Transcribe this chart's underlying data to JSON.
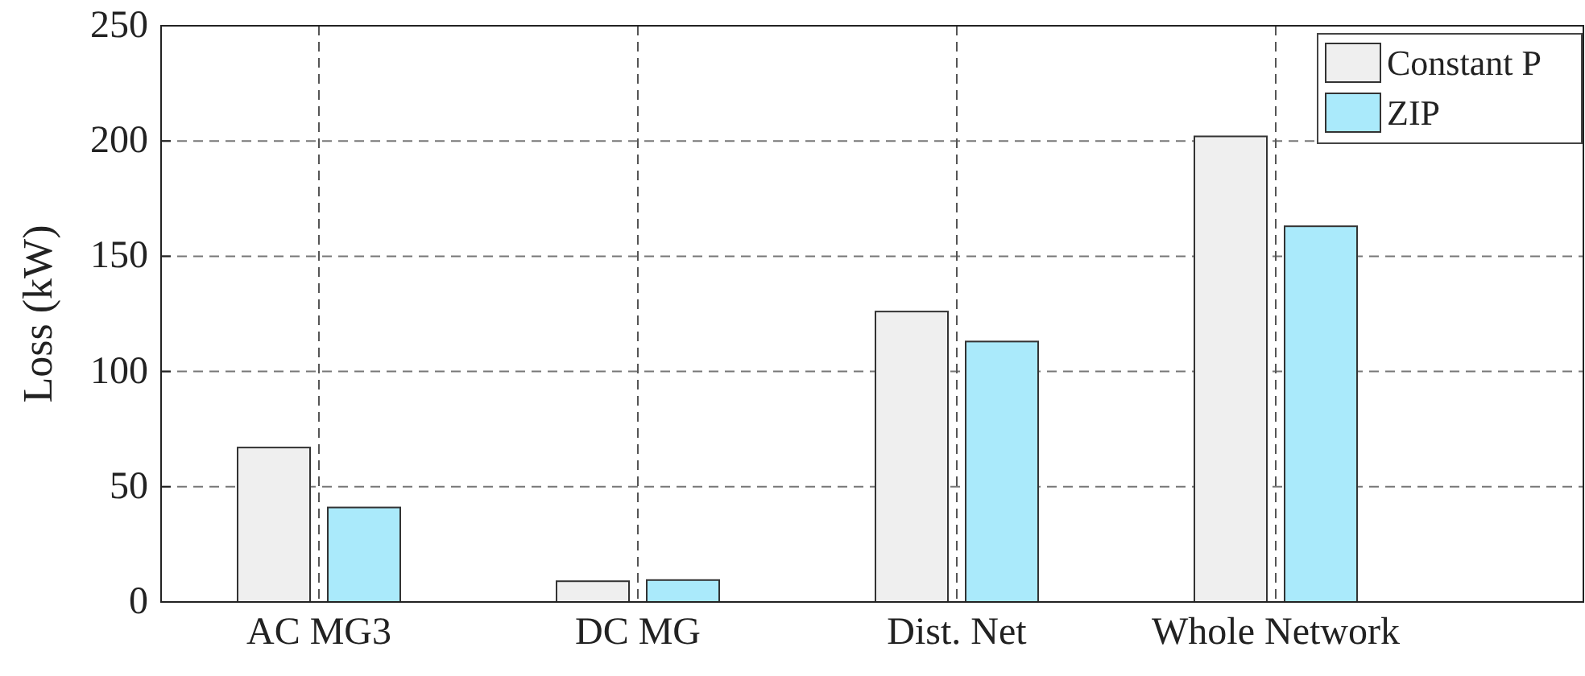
{
  "chart_data": {
    "type": "bar",
    "ylabel": "Loss (kW)",
    "categories": [
      "AC MG3",
      "DC MG",
      "Dist. Net",
      "Whole Network"
    ],
    "series": [
      {
        "name": "Constant P",
        "color": "#efefef",
        "values": [
          67,
          9,
          126,
          202
        ]
      },
      {
        "name": "ZIP",
        "color": "#aaeafb",
        "values": [
          41,
          9.5,
          113,
          163
        ]
      }
    ],
    "ylim": [
      0,
      250
    ],
    "yticks": [
      0,
      50,
      100,
      150,
      200,
      250
    ],
    "grid": true,
    "legend": "top right"
  }
}
